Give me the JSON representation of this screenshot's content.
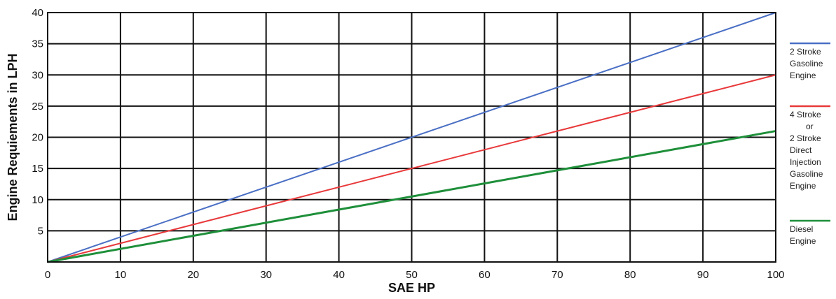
{
  "chart_data": {
    "type": "line",
    "title": "",
    "xlabel": "SAE HP",
    "ylabel": "Engine Requiements in LPH",
    "xlim": [
      0,
      100
    ],
    "ylim": [
      0,
      40
    ],
    "x_ticks": [
      0,
      10,
      20,
      30,
      40,
      50,
      60,
      70,
      80,
      90,
      100
    ],
    "y_ticks": [
      5,
      10,
      15,
      20,
      25,
      30,
      35,
      40
    ],
    "grid": true,
    "legend_position": "right",
    "series": [
      {
        "name": "2 Stroke Gasoline Engine",
        "legend_lines": [
          "2 Stroke",
          "Gasoline",
          "Engine"
        ],
        "color": "#4a6fc4",
        "x": [
          0,
          100
        ],
        "y": [
          0,
          40
        ]
      },
      {
        "name": "4 Stroke or 2 Stroke Direct Injection Gasoline Engine",
        "legend_lines": [
          "4 Stroke",
          "or",
          "2 Stroke",
          "Direct",
          "Injection",
          "Gasoline",
          "Engine"
        ],
        "color": "#e8393b",
        "x": [
          0,
          100
        ],
        "y": [
          0,
          30
        ]
      },
      {
        "name": "Diesel Engine",
        "legend_lines": [
          "Diesel",
          "Engine"
        ],
        "color": "#1e8f3a",
        "x": [
          0,
          100
        ],
        "y": [
          0,
          21
        ]
      }
    ]
  }
}
